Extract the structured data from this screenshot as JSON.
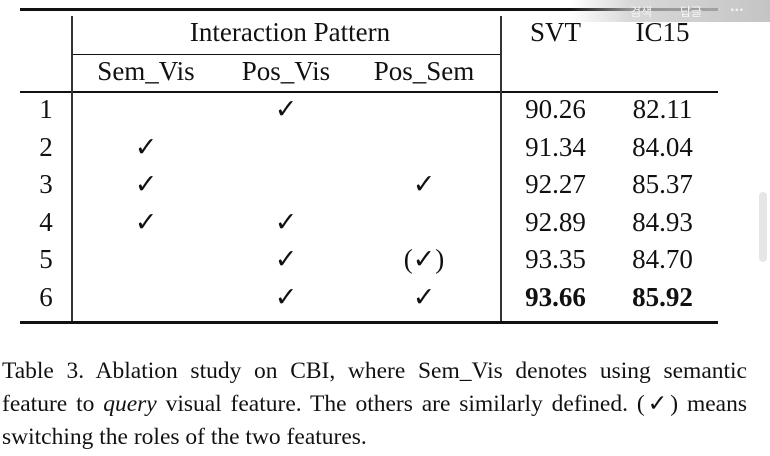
{
  "table": {
    "group_header": "Interaction Pattern",
    "metric_headers": [
      "SVT",
      "IC15"
    ],
    "sub_headers": [
      "Sem_Vis",
      "Pos_Vis",
      "Pos_Sem"
    ],
    "rows": [
      {
        "id": "1",
        "sem_vis": "",
        "pos_vis": "✓",
        "pos_sem": "",
        "svt": "90.26",
        "ic15": "82.11"
      },
      {
        "id": "2",
        "sem_vis": "✓",
        "pos_vis": "",
        "pos_sem": "",
        "svt": "91.34",
        "ic15": "84.04"
      },
      {
        "id": "3",
        "sem_vis": "✓",
        "pos_vis": "",
        "pos_sem": "✓",
        "svt": "92.27",
        "ic15": "85.37"
      },
      {
        "id": "4",
        "sem_vis": "✓",
        "pos_vis": "✓",
        "pos_sem": "",
        "svt": "92.89",
        "ic15": "84.93"
      },
      {
        "id": "5",
        "sem_vis": "",
        "pos_vis": "✓",
        "pos_sem": "(✓)",
        "svt": "93.35",
        "ic15": "84.70"
      },
      {
        "id": "6",
        "sem_vis": "",
        "pos_vis": "✓",
        "pos_sem": "✓",
        "svt": "93.66",
        "ic15": "85.92"
      }
    ]
  },
  "caption": {
    "part1": "Table 3.  Ablation study on CBI, where Sem_Vis denotes using semantic feature to ",
    "emph": "query",
    "part2": " visual feature. The others are similarly defined. (✓) means switching the roles of the two features."
  },
  "overlay": {
    "item1": "검색",
    "item2": "답글",
    "more": "···"
  }
}
